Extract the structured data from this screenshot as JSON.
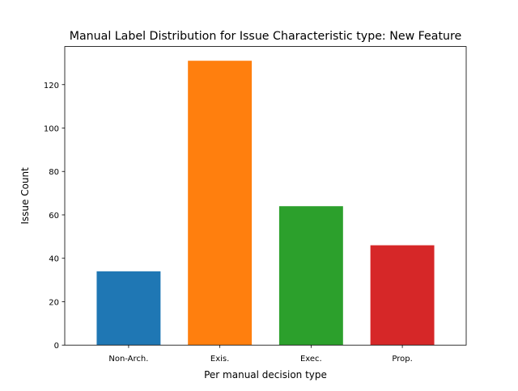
{
  "chart_data": {
    "type": "bar",
    "title": "Manual Label Distribution for Issue Characteristic type: New Feature",
    "xlabel": "Per manual decision type",
    "ylabel": "Issue Count",
    "categories": [
      "Non-Arch.",
      "Exis.",
      "Exec.",
      "Prop."
    ],
    "values": [
      34,
      131,
      64,
      46
    ],
    "colors": [
      "#1f77b4",
      "#ff7f0e",
      "#2ca02c",
      "#d62728"
    ],
    "ylim": [
      0,
      137.55
    ],
    "yticks": [
      0,
      20,
      40,
      60,
      80,
      100,
      120
    ],
    "grid": false,
    "legend": "none"
  }
}
